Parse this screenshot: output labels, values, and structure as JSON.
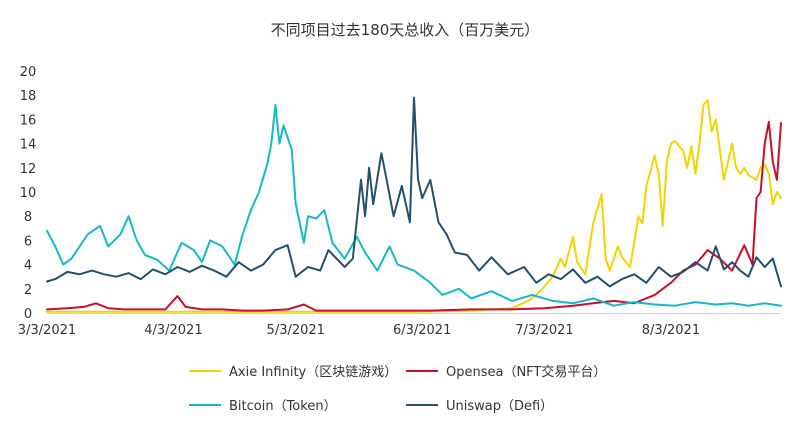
{
  "chart_data": {
    "type": "line",
    "title": "不同项目过去180天总收入（百万美元）",
    "xlabel": "",
    "ylabel": "",
    "ylim": [
      0,
      20
    ],
    "yticks": [
      0,
      2,
      4,
      6,
      8,
      10,
      12,
      14,
      16,
      18,
      20
    ],
    "x_range": [
      "2021-03-03",
      "2021-08-30"
    ],
    "xticks": [
      "3/3/2021",
      "4/3/2021",
      "5/3/2021",
      "6/3/2021",
      "7/3/2021",
      "8/3/2021"
    ],
    "grid": false,
    "legend_position": "bottom",
    "series": [
      {
        "name": "Axie Infinity（区块链游戏）",
        "color": "#f2d500",
        "points": [
          [
            "2021-03-03",
            0.1
          ],
          [
            "2021-03-15",
            0.1
          ],
          [
            "2021-04-01",
            0.1
          ],
          [
            "2021-04-15",
            0.1
          ],
          [
            "2021-05-01",
            0.1
          ],
          [
            "2021-05-15",
            0.1
          ],
          [
            "2021-06-01",
            0.1
          ],
          [
            "2021-06-15",
            0.2
          ],
          [
            "2021-06-25",
            0.4
          ],
          [
            "2021-06-29",
            1.0
          ],
          [
            "2021-07-01",
            1.5
          ],
          [
            "2021-07-03",
            2.2
          ],
          [
            "2021-07-05",
            3.0
          ],
          [
            "2021-07-07",
            4.5
          ],
          [
            "2021-07-08",
            3.8
          ],
          [
            "2021-07-10",
            6.3
          ],
          [
            "2021-07-11",
            4.2
          ],
          [
            "2021-07-13",
            3.2
          ],
          [
            "2021-07-15",
            7.5
          ],
          [
            "2021-07-17",
            9.8
          ],
          [
            "2021-07-18",
            4.5
          ],
          [
            "2021-07-19",
            3.5
          ],
          [
            "2021-07-21",
            5.5
          ],
          [
            "2021-07-22",
            4.6
          ],
          [
            "2021-07-24",
            3.8
          ],
          [
            "2021-07-25",
            5.8
          ],
          [
            "2021-07-26",
            8.0
          ],
          [
            "2021-07-27",
            7.4
          ],
          [
            "2021-07-28",
            10.5
          ],
          [
            "2021-07-30",
            13.0
          ],
          [
            "2021-07-31",
            11.5
          ],
          [
            "2021-08-01",
            7.2
          ],
          [
            "2021-08-02",
            12.5
          ],
          [
            "2021-08-03",
            14.0
          ],
          [
            "2021-08-04",
            14.2
          ],
          [
            "2021-08-06",
            13.4
          ],
          [
            "2021-08-07",
            12.0
          ],
          [
            "2021-08-08",
            13.8
          ],
          [
            "2021-08-09",
            11.5
          ],
          [
            "2021-08-10",
            14.0
          ],
          [
            "2021-08-11",
            17.2
          ],
          [
            "2021-08-12",
            17.6
          ],
          [
            "2021-08-13",
            15.0
          ],
          [
            "2021-08-14",
            16.0
          ],
          [
            "2021-08-15",
            13.5
          ],
          [
            "2021-08-16",
            11.0
          ],
          [
            "2021-08-17",
            12.5
          ],
          [
            "2021-08-18",
            14.0
          ],
          [
            "2021-08-19",
            12.0
          ],
          [
            "2021-08-20",
            11.5
          ],
          [
            "2021-08-21",
            12.0
          ],
          [
            "2021-08-22",
            11.4
          ],
          [
            "2021-08-23",
            11.2
          ],
          [
            "2021-08-24",
            11.0
          ],
          [
            "2021-08-25",
            12.0
          ],
          [
            "2021-08-26",
            12.3
          ],
          [
            "2021-08-27",
            11.5
          ],
          [
            "2021-08-28",
            9.0
          ],
          [
            "2021-08-29",
            10.0
          ],
          [
            "2021-08-30",
            9.5
          ]
        ]
      },
      {
        "name": "Opensea（NFT交易平台）",
        "color": "#c8102e",
        "points": [
          [
            "2021-03-03",
            0.3
          ],
          [
            "2021-03-08",
            0.4
          ],
          [
            "2021-03-12",
            0.5
          ],
          [
            "2021-03-15",
            0.8
          ],
          [
            "2021-03-18",
            0.4
          ],
          [
            "2021-03-22",
            0.3
          ],
          [
            "2021-03-28",
            0.3
          ],
          [
            "2021-04-01",
            0.3
          ],
          [
            "2021-04-04",
            1.4
          ],
          [
            "2021-04-06",
            0.5
          ],
          [
            "2021-04-10",
            0.3
          ],
          [
            "2021-04-15",
            0.3
          ],
          [
            "2021-04-20",
            0.2
          ],
          [
            "2021-04-25",
            0.2
          ],
          [
            "2021-05-01",
            0.3
          ],
          [
            "2021-05-05",
            0.7
          ],
          [
            "2021-05-08",
            0.2
          ],
          [
            "2021-05-15",
            0.2
          ],
          [
            "2021-05-25",
            0.2
          ],
          [
            "2021-06-05",
            0.2
          ],
          [
            "2021-06-15",
            0.3
          ],
          [
            "2021-06-25",
            0.3
          ],
          [
            "2021-07-03",
            0.4
          ],
          [
            "2021-07-10",
            0.6
          ],
          [
            "2021-07-15",
            0.8
          ],
          [
            "2021-07-20",
            1.0
          ],
          [
            "2021-07-25",
            0.8
          ],
          [
            "2021-07-30",
            1.5
          ],
          [
            "2021-08-03",
            2.5
          ],
          [
            "2021-08-06",
            3.5
          ],
          [
            "2021-08-09",
            4.0
          ],
          [
            "2021-08-12",
            5.2
          ],
          [
            "2021-08-15",
            4.5
          ],
          [
            "2021-08-18",
            3.5
          ],
          [
            "2021-08-21",
            5.6
          ],
          [
            "2021-08-23",
            4.0
          ],
          [
            "2021-08-24",
            9.5
          ],
          [
            "2021-08-25",
            10.0
          ],
          [
            "2021-08-26",
            14.0
          ],
          [
            "2021-08-27",
            15.8
          ],
          [
            "2021-08-28",
            12.5
          ],
          [
            "2021-08-29",
            11.0
          ],
          [
            "2021-08-30",
            15.7
          ]
        ]
      },
      {
        "name": "Bitcoin（Token）",
        "color": "#17b8c8",
        "points": [
          [
            "2021-03-03",
            6.8
          ],
          [
            "2021-03-05",
            5.5
          ],
          [
            "2021-03-07",
            4.0
          ],
          [
            "2021-03-09",
            4.5
          ],
          [
            "2021-03-11",
            5.5
          ],
          [
            "2021-03-13",
            6.5
          ],
          [
            "2021-03-16",
            7.2
          ],
          [
            "2021-03-18",
            5.5
          ],
          [
            "2021-03-21",
            6.5
          ],
          [
            "2021-03-23",
            8.0
          ],
          [
            "2021-03-25",
            6.0
          ],
          [
            "2021-03-27",
            4.8
          ],
          [
            "2021-03-30",
            4.4
          ],
          [
            "2021-04-02",
            3.5
          ],
          [
            "2021-04-05",
            5.8
          ],
          [
            "2021-04-08",
            5.2
          ],
          [
            "2021-04-10",
            4.2
          ],
          [
            "2021-04-12",
            6.0
          ],
          [
            "2021-04-15",
            5.5
          ],
          [
            "2021-04-18",
            4.0
          ],
          [
            "2021-04-20",
            6.5
          ],
          [
            "2021-04-22",
            8.5
          ],
          [
            "2021-04-24",
            10.0
          ],
          [
            "2021-04-26",
            12.3
          ],
          [
            "2021-04-27",
            14.0
          ],
          [
            "2021-04-28",
            17.2
          ],
          [
            "2021-04-29",
            14.0
          ],
          [
            "2021-04-30",
            15.5
          ],
          [
            "2021-05-02",
            13.5
          ],
          [
            "2021-05-03",
            9.0
          ],
          [
            "2021-05-05",
            5.8
          ],
          [
            "2021-05-06",
            8.0
          ],
          [
            "2021-05-08",
            7.8
          ],
          [
            "2021-05-10",
            8.5
          ],
          [
            "2021-05-12",
            5.8
          ],
          [
            "2021-05-15",
            4.5
          ],
          [
            "2021-05-18",
            6.3
          ],
          [
            "2021-05-20",
            5.0
          ],
          [
            "2021-05-23",
            3.5
          ],
          [
            "2021-05-26",
            5.5
          ],
          [
            "2021-05-28",
            4.0
          ],
          [
            "2021-06-01",
            3.5
          ],
          [
            "2021-06-05",
            2.5
          ],
          [
            "2021-06-08",
            1.5
          ],
          [
            "2021-06-12",
            2.0
          ],
          [
            "2021-06-15",
            1.2
          ],
          [
            "2021-06-20",
            1.8
          ],
          [
            "2021-06-25",
            1.0
          ],
          [
            "2021-06-30",
            1.5
          ],
          [
            "2021-07-05",
            1.0
          ],
          [
            "2021-07-10",
            0.8
          ],
          [
            "2021-07-15",
            1.2
          ],
          [
            "2021-07-20",
            0.6
          ],
          [
            "2021-07-25",
            0.9
          ],
          [
            "2021-07-30",
            0.7
          ],
          [
            "2021-08-04",
            0.6
          ],
          [
            "2021-08-09",
            0.9
          ],
          [
            "2021-08-14",
            0.7
          ],
          [
            "2021-08-18",
            0.8
          ],
          [
            "2021-08-22",
            0.6
          ],
          [
            "2021-08-26",
            0.8
          ],
          [
            "2021-08-30",
            0.6
          ]
        ]
      },
      {
        "name": "Uniswap（Defi）",
        "color": "#24506a",
        "points": [
          [
            "2021-03-03",
            2.6
          ],
          [
            "2021-03-05",
            2.8
          ],
          [
            "2021-03-08",
            3.4
          ],
          [
            "2021-03-11",
            3.2
          ],
          [
            "2021-03-14",
            3.5
          ],
          [
            "2021-03-17",
            3.2
          ],
          [
            "2021-03-20",
            3.0
          ],
          [
            "2021-03-23",
            3.3
          ],
          [
            "2021-03-26",
            2.8
          ],
          [
            "2021-03-29",
            3.6
          ],
          [
            "2021-04-01",
            3.2
          ],
          [
            "2021-04-04",
            3.8
          ],
          [
            "2021-04-07",
            3.4
          ],
          [
            "2021-04-10",
            3.9
          ],
          [
            "2021-04-13",
            3.5
          ],
          [
            "2021-04-16",
            3.0
          ],
          [
            "2021-04-19",
            4.2
          ],
          [
            "2021-04-22",
            3.5
          ],
          [
            "2021-04-25",
            4.0
          ],
          [
            "2021-04-28",
            5.2
          ],
          [
            "2021-05-01",
            5.6
          ],
          [
            "2021-05-03",
            3.0
          ],
          [
            "2021-05-06",
            3.8
          ],
          [
            "2021-05-09",
            3.5
          ],
          [
            "2021-05-11",
            5.2
          ],
          [
            "2021-05-13",
            4.5
          ],
          [
            "2021-05-15",
            3.8
          ],
          [
            "2021-05-17",
            4.5
          ],
          [
            "2021-05-19",
            11.0
          ],
          [
            "2021-05-20",
            8.0
          ],
          [
            "2021-05-21",
            12.0
          ],
          [
            "2021-05-22",
            9.0
          ],
          [
            "2021-05-24",
            13.2
          ],
          [
            "2021-05-25",
            11.5
          ],
          [
            "2021-05-27",
            8.0
          ],
          [
            "2021-05-29",
            10.5
          ],
          [
            "2021-05-31",
            7.5
          ],
          [
            "2021-06-01",
            17.8
          ],
          [
            "2021-06-02",
            11.0
          ],
          [
            "2021-06-03",
            9.5
          ],
          [
            "2021-06-05",
            11.0
          ],
          [
            "2021-06-07",
            7.5
          ],
          [
            "2021-06-09",
            6.5
          ],
          [
            "2021-06-11",
            5.0
          ],
          [
            "2021-06-14",
            4.8
          ],
          [
            "2021-06-17",
            3.5
          ],
          [
            "2021-06-20",
            4.6
          ],
          [
            "2021-06-24",
            3.2
          ],
          [
            "2021-06-28",
            3.8
          ],
          [
            "2021-07-01",
            2.5
          ],
          [
            "2021-07-04",
            3.2
          ],
          [
            "2021-07-07",
            2.8
          ],
          [
            "2021-07-10",
            3.6
          ],
          [
            "2021-07-13",
            2.5
          ],
          [
            "2021-07-16",
            3.0
          ],
          [
            "2021-07-19",
            2.2
          ],
          [
            "2021-07-22",
            2.8
          ],
          [
            "2021-07-25",
            3.2
          ],
          [
            "2021-07-28",
            2.5
          ],
          [
            "2021-07-31",
            3.8
          ],
          [
            "2021-08-03",
            3.0
          ],
          [
            "2021-08-06",
            3.4
          ],
          [
            "2021-08-09",
            4.2
          ],
          [
            "2021-08-12",
            3.5
          ],
          [
            "2021-08-14",
            5.5
          ],
          [
            "2021-08-16",
            3.6
          ],
          [
            "2021-08-18",
            4.2
          ],
          [
            "2021-08-20",
            3.5
          ],
          [
            "2021-08-22",
            3.0
          ],
          [
            "2021-08-24",
            4.6
          ],
          [
            "2021-08-26",
            3.8
          ],
          [
            "2021-08-28",
            4.5
          ],
          [
            "2021-08-30",
            2.2
          ]
        ]
      }
    ]
  }
}
